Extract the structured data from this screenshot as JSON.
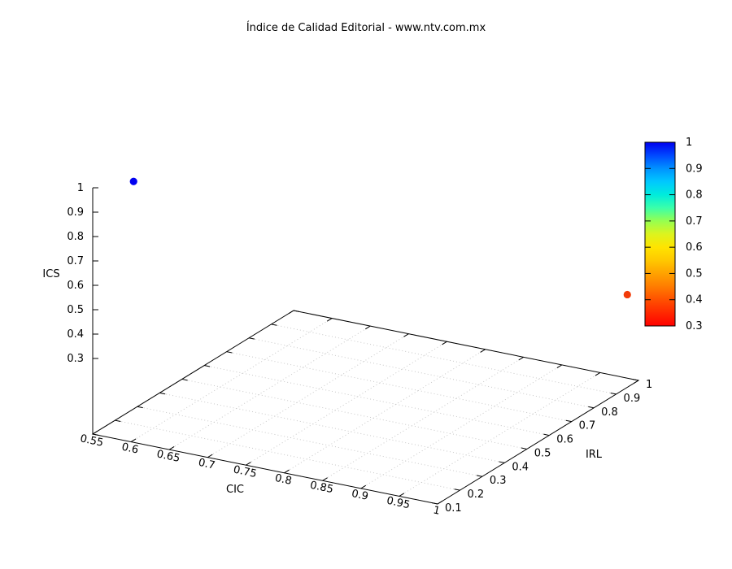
{
  "title": "Índice de Calidad Editorial - www.ntv.com.mx",
  "chart_data": {
    "type": "scatter",
    "projection": "3d",
    "title": "Índice de Calidad Editorial - www.ntv.com.mx",
    "axes": {
      "x": {
        "label": "CIC",
        "min": 0.55,
        "max": 1,
        "ticks": [
          {
            "v": 0.55,
            "label": "0.55"
          },
          {
            "v": 0.6,
            "label": "0.6"
          },
          {
            "v": 0.65,
            "label": "0.65"
          },
          {
            "v": 0.7,
            "label": "0.7"
          },
          {
            "v": 0.75,
            "label": "0.75"
          },
          {
            "v": 0.8,
            "label": "0.8"
          },
          {
            "v": 0.85,
            "label": "0.85"
          },
          {
            "v": 0.9,
            "label": "0.9"
          },
          {
            "v": 0.95,
            "label": "0.95"
          },
          {
            "v": 1,
            "label": "1"
          }
        ]
      },
      "y": {
        "label": "IRL",
        "min": 0.1,
        "max": 1,
        "ticks": [
          {
            "v": 0.1,
            "label": "0.1"
          },
          {
            "v": 0.2,
            "label": "0.2"
          },
          {
            "v": 0.3,
            "label": "0.3"
          },
          {
            "v": 0.4,
            "label": "0.4"
          },
          {
            "v": 0.5,
            "label": "0.5"
          },
          {
            "v": 0.6,
            "label": "0.6"
          },
          {
            "v": 0.7,
            "label": "0.7"
          },
          {
            "v": 0.8,
            "label": "0.8"
          },
          {
            "v": 0.9,
            "label": "0.9"
          },
          {
            "v": 1,
            "label": "1"
          }
        ]
      },
      "z": {
        "label": "ICS",
        "min": 0,
        "max": 1,
        "ticks": [
          {
            "v": 0.3,
            "label": "0.3"
          },
          {
            "v": 0.4,
            "label": "0.4"
          },
          {
            "v": 0.5,
            "label": "0.5"
          },
          {
            "v": 0.6,
            "label": "0.6"
          },
          {
            "v": 0.7,
            "label": "0.7"
          },
          {
            "v": 0.8,
            "label": "0.8"
          },
          {
            "v": 0.9,
            "label": "0.9"
          },
          {
            "v": 1,
            "label": "1"
          }
        ]
      }
    },
    "grid": {
      "visible": true,
      "style": "dotted",
      "color": "#c8c8c8"
    },
    "points": [
      {
        "x": 0.58,
        "y": 0.18,
        "z": 1.0,
        "palette_value": 1.0,
        "color": "#0202f0"
      },
      {
        "x": 1.0,
        "y": 0.95,
        "z": 0.37,
        "palette_value": 0.4,
        "color": "#f23c0a"
      }
    ],
    "colorbar": {
      "min": 0.3,
      "max": 1,
      "ticks": [
        {
          "v": 1,
          "label": "1"
        },
        {
          "v": 0.9,
          "label": "0.9"
        },
        {
          "v": 0.8,
          "label": "0.8"
        },
        {
          "v": 0.7,
          "label": "0.7"
        },
        {
          "v": 0.6,
          "label": "0.6"
        },
        {
          "v": 0.5,
          "label": "0.5"
        },
        {
          "v": 0.4,
          "label": "0.4"
        },
        {
          "v": 0.3,
          "label": "0.3"
        }
      ],
      "palette": [
        {
          "v": 1.0,
          "color": "#0000ee"
        },
        {
          "v": 0.95,
          "color": "#0048ff"
        },
        {
          "v": 0.9,
          "color": "#0092ff"
        },
        {
          "v": 0.85,
          "color": "#00c8ff"
        },
        {
          "v": 0.8,
          "color": "#00ecdc"
        },
        {
          "v": 0.75,
          "color": "#3affaa"
        },
        {
          "v": 0.7,
          "color": "#96ff50"
        },
        {
          "v": 0.65,
          "color": "#dcf41e"
        },
        {
          "v": 0.6,
          "color": "#ffe400"
        },
        {
          "v": 0.55,
          "color": "#ffc800"
        },
        {
          "v": 0.5,
          "color": "#ffa200"
        },
        {
          "v": 0.45,
          "color": "#ff7c00"
        },
        {
          "v": 0.4,
          "color": "#ff5000"
        },
        {
          "v": 0.35,
          "color": "#ff2800"
        },
        {
          "v": 0.3,
          "color": "#ff0000"
        }
      ]
    }
  }
}
